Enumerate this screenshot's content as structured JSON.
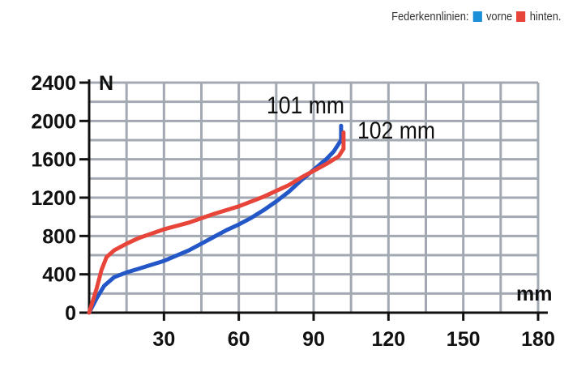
{
  "legend": {
    "label": "Federkennlinien:",
    "items": [
      {
        "label": "vorne",
        "color": "#1b8fd8"
      },
      {
        "label": "hinten.",
        "color": "#e8453a"
      }
    ]
  },
  "chart_data": {
    "type": "line",
    "xlabel": "mm",
    "ylabel": "N",
    "xlim": [
      0,
      180
    ],
    "ylim": [
      0,
      2400
    ],
    "x_ticks": [
      30,
      60,
      90,
      120,
      150,
      180
    ],
    "y_ticks": [
      0,
      400,
      800,
      1200,
      1600,
      2000,
      2400
    ],
    "grid": true,
    "legend_position": "top-right",
    "colors": {
      "grid": "#a3a9b3",
      "axis": "#111111"
    },
    "series": [
      {
        "name": "vorne",
        "color": "#2357c8",
        "points": [
          [
            0,
            0
          ],
          [
            3,
            150
          ],
          [
            6,
            280
          ],
          [
            10,
            370
          ],
          [
            15,
            420
          ],
          [
            20,
            460
          ],
          [
            30,
            540
          ],
          [
            40,
            650
          ],
          [
            50,
            790
          ],
          [
            55,
            860
          ],
          [
            60,
            920
          ],
          [
            65,
            990
          ],
          [
            70,
            1070
          ],
          [
            75,
            1160
          ],
          [
            80,
            1260
          ],
          [
            85,
            1380
          ],
          [
            90,
            1490
          ],
          [
            95,
            1600
          ],
          [
            98,
            1680
          ],
          [
            100,
            1760
          ],
          [
            101,
            1800
          ],
          [
            101,
            1950
          ]
        ]
      },
      {
        "name": "hinten.",
        "color": "#e8453a",
        "points": [
          [
            0,
            0
          ],
          [
            3,
            250
          ],
          [
            5,
            450
          ],
          [
            7,
            580
          ],
          [
            10,
            650
          ],
          [
            15,
            720
          ],
          [
            20,
            780
          ],
          [
            30,
            870
          ],
          [
            40,
            940
          ],
          [
            50,
            1030
          ],
          [
            60,
            1110
          ],
          [
            70,
            1210
          ],
          [
            75,
            1270
          ],
          [
            80,
            1330
          ],
          [
            85,
            1410
          ],
          [
            90,
            1480
          ],
          [
            95,
            1550
          ],
          [
            100,
            1630
          ],
          [
            102,
            1710
          ],
          [
            102,
            1880
          ]
        ]
      }
    ],
    "annotations": [
      {
        "text": "101 mm",
        "series": "vorne"
      },
      {
        "text": "102 mm",
        "series": "hinten."
      }
    ]
  }
}
